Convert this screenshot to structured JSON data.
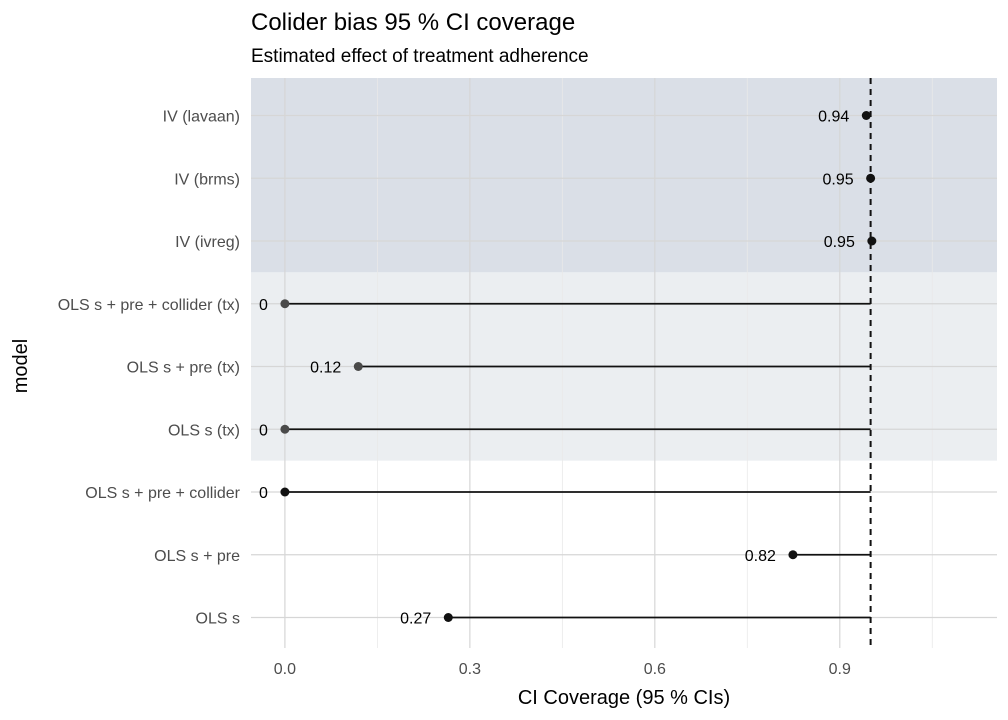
{
  "chart_data": {
    "type": "lollipop",
    "title": "Colider bias 95 % CI coverage",
    "subtitle": "Estimated effect of treatment adherence",
    "xlabel": "CI Coverage (95 % CIs)",
    "ylabel": "model",
    "xlim": [
      -0.055,
      1.155
    ],
    "xticks": [
      0.0,
      0.3,
      0.6,
      0.9
    ],
    "xtick_labels": [
      "0.0",
      "0.3",
      "0.6",
      "0.9"
    ],
    "reference_line": 0.95,
    "grid": true,
    "categories": [
      "IV (lavaan)",
      "IV (brms)",
      "IV (ivreg)",
      "OLS s + pre + collider (tx)",
      "OLS s + pre (tx)",
      "OLS s (tx)",
      "OLS s + pre + collider",
      "OLS s + pre",
      "OLS s"
    ],
    "values": [
      0.943,
      0.95,
      0.952,
      0.0,
      0.119,
      0.0,
      0.0,
      0.824,
      0.265
    ],
    "value_labels": [
      "0.94",
      "0.95",
      "0.95",
      "0",
      "0.12",
      "0",
      "0",
      "0.82",
      "0.27"
    ],
    "groups": [
      {
        "rows": [
          0,
          1,
          2
        ],
        "color": "#dadfe7"
      },
      {
        "rows": [
          3,
          4,
          5
        ],
        "color": "#ebeef1"
      }
    ],
    "point_colors": [
      "#111111",
      "#111111",
      "#111111",
      "#4a4a4a",
      "#4a4a4a",
      "#4a4a4a",
      "#111111",
      "#111111",
      "#111111"
    ]
  }
}
